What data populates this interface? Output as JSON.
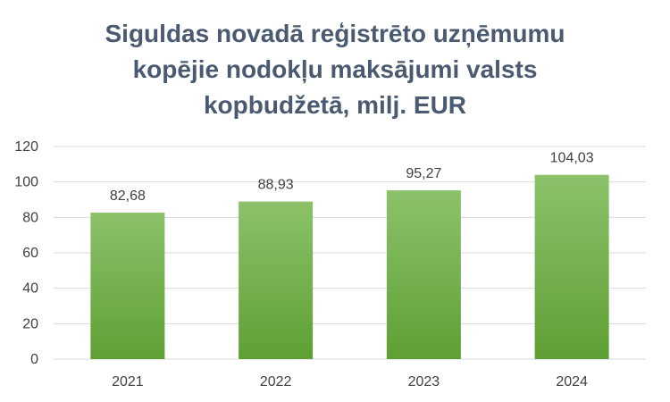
{
  "chart_data": {
    "type": "bar",
    "title_lines": [
      "Siguldas novadā reģistrēto uzņēmumu",
      "kopējie nodokļu maksājumi valsts",
      "kopbudžetā, milj. EUR"
    ],
    "categories": [
      "2021",
      "2022",
      "2023",
      "2024"
    ],
    "values": [
      82.68,
      88.93,
      95.27,
      104.03
    ],
    "data_labels": [
      "82,68",
      "88,93",
      "95,27",
      "104,03"
    ],
    "ylim": [
      0,
      120
    ],
    "yticks": [
      0,
      20,
      40,
      60,
      80,
      100,
      120
    ],
    "grid": true,
    "legend": "none",
    "colors": {
      "bar_top": "#8cc26a",
      "bar_bottom": "#5ea034",
      "grid": "#d9d9d9",
      "title": "#4a5a70"
    }
  }
}
